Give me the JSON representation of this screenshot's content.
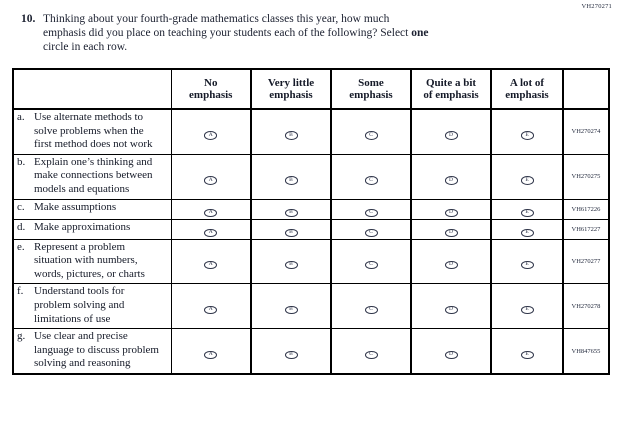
{
  "page": {
    "form_code": "VH270271"
  },
  "question": {
    "number": "10.",
    "line1": "Thinking about your fourth-grade mathematics classes this year, how much",
    "line2_pre": "emphasis did you place on teaching your students each of the following? Select",
    "line2_bold": "one",
    "line3": "circle in each row."
  },
  "table": {
    "columns": [
      {
        "line1": "No",
        "line2": "emphasis"
      },
      {
        "line1": "Very little",
        "line2": "emphasis"
      },
      {
        "line1": "Some",
        "line2": "emphasis"
      },
      {
        "line1": "Quite a bit",
        "line2": "of emphasis"
      },
      {
        "line1": "A lot of",
        "line2": "emphasis"
      }
    ],
    "option_letters": [
      "A",
      "B",
      "C",
      "D",
      "E"
    ],
    "rows": [
      {
        "letter": "a.",
        "text": "Use alternate methods to solve problems when the first method does not work",
        "code": "VH270274"
      },
      {
        "letter": "b.",
        "text": "Explain one’s thinking and make connections between models and equations",
        "code": "VH270275"
      },
      {
        "letter": "c.",
        "text": "Make assumptions",
        "code": "VH617226"
      },
      {
        "letter": "d.",
        "text": "Make approximations",
        "code": "VH617227"
      },
      {
        "letter": "e.",
        "text": "Represent a problem situation with numbers, words, pictures, or charts",
        "code": "VH270277"
      },
      {
        "letter": "f.",
        "text": "Understand tools for problem solving and limitations of use",
        "code": "VH270278"
      },
      {
        "letter": "g.",
        "text": "Use clear and precise language to discuss problem solving and reasoning",
        "code": "VH847655"
      }
    ]
  }
}
